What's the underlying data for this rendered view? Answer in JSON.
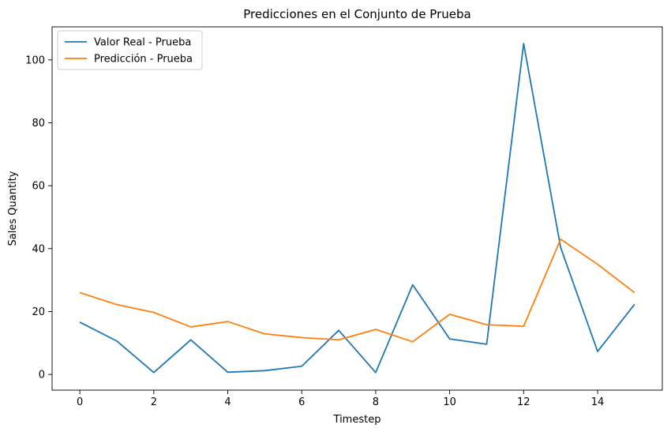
{
  "chart_data": {
    "type": "line",
    "title": "Predicciones en el Conjunto de Prueba",
    "xlabel": "Timestep",
    "ylabel": "Sales Quantity",
    "x": [
      0,
      1,
      2,
      3,
      4,
      5,
      6,
      7,
      8,
      9,
      10,
      11,
      12,
      13,
      14,
      15
    ],
    "xlim": [
      -0.75,
      15.75
    ],
    "ylim": [
      -5,
      110.5
    ],
    "xticks": [
      0,
      2,
      4,
      6,
      8,
      10,
      12,
      14
    ],
    "yticks": [
      0,
      20,
      40,
      60,
      80,
      100
    ],
    "grid": false,
    "legend_position": "top-left",
    "series": [
      {
        "name": "Valor Real - Prueba",
        "color": "#1f77b4",
        "values": [
          16.6,
          10.6,
          0.6,
          11.0,
          0.7,
          1.2,
          2.6,
          14.0,
          0.6,
          28.5,
          11.3,
          9.6,
          105.2,
          40.4,
          7.3,
          22.3
        ]
      },
      {
        "name": "Predicción - Prueba",
        "color": "#ff7f0e",
        "values": [
          26.0,
          22.2,
          19.7,
          15.1,
          16.8,
          12.9,
          11.7,
          11.0,
          14.3,
          10.4,
          19.1,
          15.8,
          15.3,
          43.0,
          35.0,
          26.0
        ]
      }
    ]
  }
}
